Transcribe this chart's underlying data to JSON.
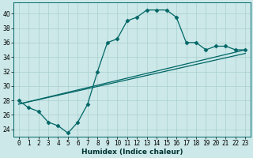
{
  "xlabel": "Humidex (Indice chaleur)",
  "bg_color": "#cce8e8",
  "line_color": "#006666",
  "xlim": [
    -0.5,
    23.5
  ],
  "ylim": [
    23,
    41.5
  ],
  "yticks": [
    24,
    26,
    28,
    30,
    32,
    34,
    36,
    38,
    40
  ],
  "xticks": [
    0,
    1,
    2,
    3,
    4,
    5,
    6,
    7,
    8,
    9,
    10,
    11,
    12,
    13,
    14,
    15,
    16,
    17,
    18,
    19,
    20,
    21,
    22,
    23
  ],
  "curve_x": [
    0,
    1,
    2,
    3,
    4,
    5,
    6,
    7,
    8,
    9,
    10,
    11,
    12,
    13,
    14,
    15,
    16,
    17,
    18,
    19,
    20,
    21,
    22,
    23
  ],
  "curve_y": [
    28,
    27,
    26.5,
    25,
    24.5,
    23.5,
    25,
    27.5,
    32,
    36,
    36.5,
    39,
    39.5,
    40.5,
    40.5,
    40.5,
    39.5,
    36,
    36,
    35,
    35.5,
    35.5,
    35,
    35
  ],
  "line2_x": [
    0,
    23
  ],
  "line2_y": [
    27.5,
    35.0
  ],
  "line3_x": [
    0,
    23
  ],
  "line3_y": [
    27.5,
    34.5
  ],
  "grid_color": "#aacfcf",
  "marker": "D",
  "markersize": 2.5,
  "linewidth": 0.9,
  "tick_fontsize": 5.5,
  "xlabel_fontsize": 6.5
}
